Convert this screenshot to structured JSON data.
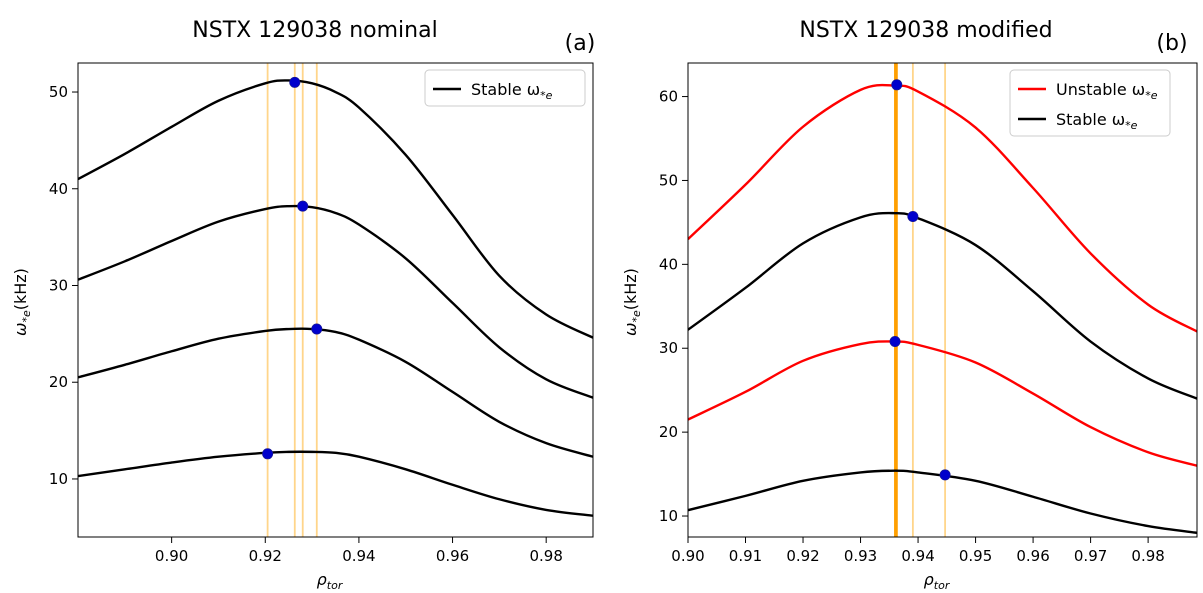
{
  "colors": {
    "stable": "#000000",
    "unstable": "#ff0000",
    "marker": "#0000cc",
    "vline_light": "#ffd58a",
    "vline_dark": "#ff9f00"
  },
  "chart_data": [
    {
      "type": "line",
      "title": "NSTX 129038 nominal",
      "panel_label": "(a)",
      "xlabel": "ρ",
      "xlabel_sub": "tor",
      "ylabel": "ω",
      "ylabel_sub": "*e",
      "ylabel_unit": "(kHz)",
      "xlim": [
        0.88,
        0.99
      ],
      "ylim": [
        4,
        53
      ],
      "xticks": [
        0.9,
        0.92,
        0.94,
        0.96,
        0.98
      ],
      "xtick_labels": [
        "0.90",
        "0.92",
        "0.94",
        "0.96",
        "0.98"
      ],
      "yticks": [
        10,
        20,
        30,
        40,
        50
      ],
      "ytick_labels": [
        "10",
        "20",
        "30",
        "40",
        "50"
      ],
      "legend": [
        {
          "label": "Stable ω",
          "sub": "*e",
          "color": "#000000"
        }
      ],
      "vlines": [
        {
          "x": 0.9205,
          "strong": false
        },
        {
          "x": 0.9263,
          "strong": false
        },
        {
          "x": 0.928,
          "strong": false
        },
        {
          "x": 0.931,
          "strong": false
        }
      ],
      "series": [
        {
          "name": "Stable ω*e",
          "color": "#000000",
          "x": [
            0.88,
            0.89,
            0.9,
            0.91,
            0.92,
            0.925,
            0.93,
            0.935,
            0.94,
            0.95,
            0.96,
            0.97,
            0.98,
            0.99
          ],
          "y": [
            41.0,
            43.6,
            46.4,
            49.1,
            50.9,
            51.2,
            50.9,
            50.0,
            48.4,
            43.5,
            37.3,
            31.0,
            27.0,
            24.6
          ],
          "marker": {
            "x": 0.9263,
            "y": 51.0
          }
        },
        {
          "name": "Stable ω*e",
          "color": "#000000",
          "x": [
            0.88,
            0.89,
            0.9,
            0.91,
            0.92,
            0.925,
            0.93,
            0.935,
            0.94,
            0.95,
            0.96,
            0.97,
            0.98,
            0.99
          ],
          "y": [
            30.6,
            32.5,
            34.6,
            36.6,
            37.9,
            38.2,
            38.1,
            37.5,
            36.3,
            32.8,
            28.2,
            23.6,
            20.3,
            18.4
          ],
          "marker": {
            "x": 0.928,
            "y": 38.2
          }
        },
        {
          "name": "Stable ω*e",
          "color": "#000000",
          "x": [
            0.88,
            0.89,
            0.9,
            0.91,
            0.92,
            0.925,
            0.93,
            0.935,
            0.94,
            0.95,
            0.96,
            0.97,
            0.98,
            0.99
          ],
          "y": [
            20.5,
            21.8,
            23.2,
            24.5,
            25.3,
            25.5,
            25.5,
            25.2,
            24.4,
            22.1,
            19.0,
            15.9,
            13.7,
            12.3
          ],
          "marker": {
            "x": 0.931,
            "y": 25.5
          }
        },
        {
          "name": "Stable ω*e",
          "color": "#000000",
          "x": [
            0.88,
            0.89,
            0.9,
            0.91,
            0.92,
            0.925,
            0.93,
            0.935,
            0.94,
            0.95,
            0.96,
            0.97,
            0.98,
            0.99
          ],
          "y": [
            10.3,
            11.0,
            11.7,
            12.3,
            12.7,
            12.8,
            12.8,
            12.7,
            12.3,
            11.0,
            9.4,
            7.9,
            6.8,
            6.2
          ],
          "marker": {
            "x": 0.9205,
            "y": 12.6
          }
        }
      ]
    },
    {
      "type": "line",
      "title": "NSTX 129038 modified",
      "panel_label": "(b)",
      "xlabel": "ρ",
      "xlabel_sub": "tor",
      "ylabel": "ω",
      "ylabel_sub": "*e",
      "ylabel_unit": "(kHz)",
      "xlim": [
        0.9,
        0.9885
      ],
      "ylim": [
        7.5,
        64
      ],
      "xticks": [
        0.9,
        0.91,
        0.92,
        0.93,
        0.94,
        0.95,
        0.96,
        0.97,
        0.98
      ],
      "xtick_labels": [
        "0.90",
        "0.91",
        "0.92",
        "0.93",
        "0.94",
        "0.95",
        "0.96",
        "0.97",
        "0.98"
      ],
      "yticks": [
        10,
        20,
        30,
        40,
        50,
        60
      ],
      "ytick_labels": [
        "10",
        "20",
        "30",
        "40",
        "50",
        "60"
      ],
      "legend": [
        {
          "label": "Unstable ω",
          "sub": "*e",
          "color": "#ff0000"
        },
        {
          "label": "Stable ω",
          "sub": "*e",
          "color": "#000000"
        }
      ],
      "vlines": [
        {
          "x": 0.936,
          "strong": true
        },
        {
          "x": 0.9363,
          "strong": true
        },
        {
          "x": 0.9391,
          "strong": false
        },
        {
          "x": 0.9447,
          "strong": false
        }
      ],
      "series": [
        {
          "name": "Unstable ω*e",
          "color": "#ff0000",
          "x": [
            0.9,
            0.91,
            0.92,
            0.93,
            0.936,
            0.94,
            0.95,
            0.96,
            0.97,
            0.98,
            0.9885
          ],
          "y": [
            43.0,
            49.5,
            56.4,
            60.8,
            61.3,
            60.6,
            56.3,
            49.1,
            41.3,
            35.2,
            32.0
          ],
          "marker": {
            "x": 0.9363,
            "y": 61.4
          }
        },
        {
          "name": "Stable ω*e",
          "color": "#000000",
          "x": [
            0.9,
            0.91,
            0.92,
            0.93,
            0.936,
            0.94,
            0.95,
            0.96,
            0.97,
            0.98,
            0.9885
          ],
          "y": [
            32.2,
            37.2,
            42.5,
            45.6,
            46.1,
            45.5,
            42.3,
            36.8,
            30.8,
            26.4,
            24.0
          ],
          "marker": {
            "x": 0.9391,
            "y": 45.7
          }
        },
        {
          "name": "Unstable ω*e",
          "color": "#ff0000",
          "x": [
            0.9,
            0.91,
            0.92,
            0.93,
            0.936,
            0.94,
            0.95,
            0.96,
            0.97,
            0.98,
            0.9885
          ],
          "y": [
            21.5,
            24.8,
            28.5,
            30.5,
            30.8,
            30.4,
            28.3,
            24.6,
            20.6,
            17.6,
            16.0
          ],
          "marker": {
            "x": 0.936,
            "y": 30.8
          }
        },
        {
          "name": "Stable ω*e",
          "color": "#000000",
          "x": [
            0.9,
            0.91,
            0.92,
            0.93,
            0.936,
            0.94,
            0.95,
            0.96,
            0.97,
            0.98,
            0.9885
          ],
          "y": [
            10.7,
            12.4,
            14.2,
            15.2,
            15.4,
            15.2,
            14.2,
            12.3,
            10.3,
            8.8,
            8.0
          ],
          "marker": {
            "x": 0.9447,
            "y": 14.9
          }
        }
      ]
    }
  ]
}
